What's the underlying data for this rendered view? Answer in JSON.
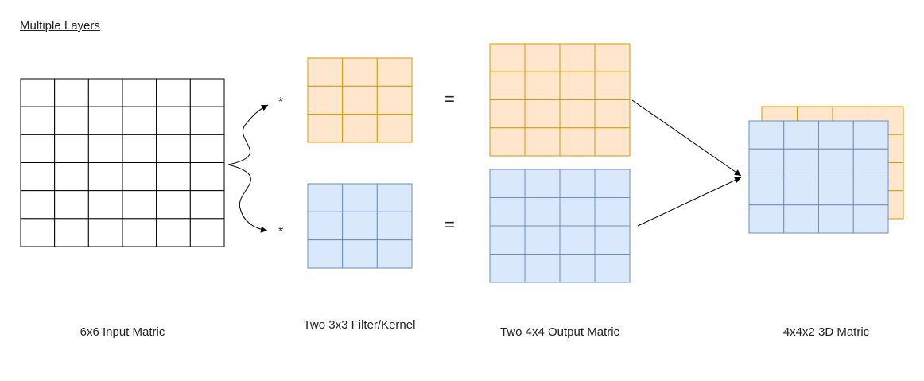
{
  "title": "Multiple Layers",
  "colors": {
    "input_stroke": "#000000",
    "input_fill": "#ffffff",
    "orange_fill": "#FFE6CC",
    "orange_stroke": "#D79B00",
    "blue_fill": "#DAE8FC",
    "blue_stroke": "#6C8EBF",
    "arrow": "#000000"
  },
  "matrices": {
    "input": {
      "rows": 6,
      "cols": 6
    },
    "filter_orange": {
      "rows": 3,
      "cols": 3
    },
    "filter_blue": {
      "rows": 3,
      "cols": 3
    },
    "output_orange": {
      "rows": 4,
      "cols": 4
    },
    "output_blue": {
      "rows": 4,
      "cols": 4
    },
    "stack_back": {
      "rows": 4,
      "cols": 4
    },
    "stack_front": {
      "rows": 4,
      "cols": 4
    }
  },
  "operators": {
    "multiply": "*",
    "equals": "="
  },
  "captions": {
    "input": "6x6 Input Matric",
    "filters": "Two 3x3 Filter/Kernel",
    "outputs": "Two 4x4 Output Matric",
    "stack": "4x4x2 3D Matric"
  }
}
